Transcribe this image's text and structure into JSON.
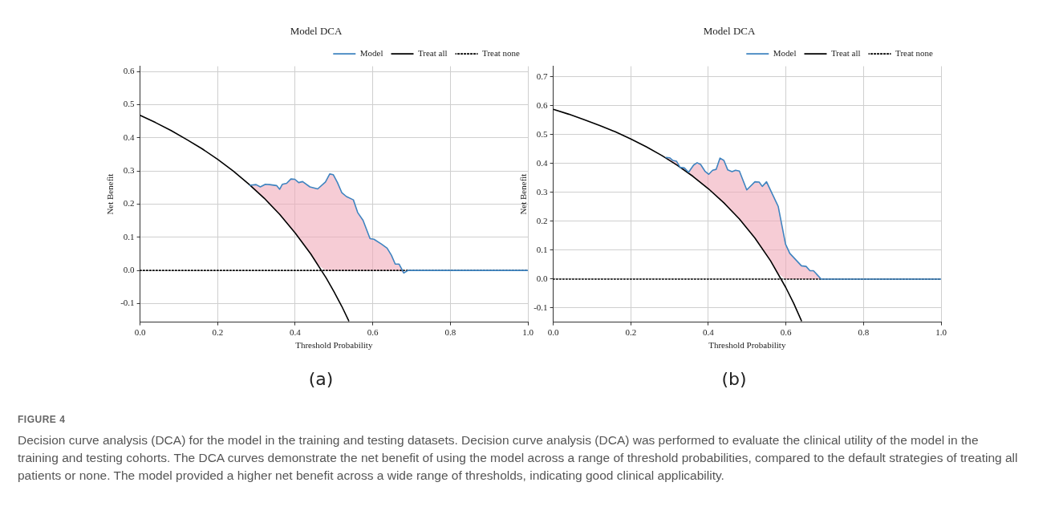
{
  "chart_data": [
    {
      "type": "line",
      "title": "Model DCA",
      "xlabel": "Threshold Probability",
      "ylabel": "Net Benefit",
      "xlim": [
        0,
        1
      ],
      "ylim": [
        -0.156,
        0.616
      ],
      "xticks": [
        {
          "value": 0,
          "label": "0.0"
        },
        {
          "value": 0.2,
          "label": "0.2"
        },
        {
          "value": 0.4,
          "label": "0.4"
        },
        {
          "value": 0.6,
          "label": "0.6"
        },
        {
          "value": 0.8,
          "label": "0.8"
        },
        {
          "value": 1,
          "label": "1.0"
        }
      ],
      "yticks": [
        {
          "value": -0.1,
          "label": "-0.1"
        },
        {
          "value": 0,
          "label": "0.0"
        },
        {
          "value": 0.1,
          "label": "0.1"
        },
        {
          "value": 0.2,
          "label": "0.2"
        },
        {
          "value": 0.3,
          "label": "0.3"
        },
        {
          "value": 0.4,
          "label": "0.4"
        },
        {
          "value": 0.5,
          "label": "0.5"
        },
        {
          "value": 0.6,
          "label": "0.6"
        }
      ],
      "grid": true,
      "legend": "top right",
      "series": [
        {
          "name": "Model",
          "color": "#3f84c0",
          "line_style": "solid",
          "x": [
            0.283,
            0.299,
            0.31,
            0.323,
            0.334,
            0.352,
            0.36,
            0.367,
            0.378,
            0.389,
            0.399,
            0.409,
            0.419,
            0.438,
            0.458,
            0.478,
            0.489,
            0.498,
            0.509,
            0.52,
            0.532,
            0.55,
            0.561,
            0.575,
            0.593,
            0.603,
            0.622,
            0.637,
            0.648,
            0.658,
            0.668,
            0.68,
            0.691,
            1
          ],
          "values": [
            0.257,
            0.259,
            0.252,
            0.26,
            0.259,
            0.256,
            0.245,
            0.26,
            0.263,
            0.276,
            0.275,
            0.265,
            0.268,
            0.252,
            0.246,
            0.267,
            0.291,
            0.289,
            0.265,
            0.235,
            0.223,
            0.213,
            0.175,
            0.151,
            0.096,
            0.094,
            0.08,
            0.067,
            0.046,
            0.019,
            0.019,
            -0.008,
            0,
            0
          ],
          "lower": [
            0.257,
            0.241,
            0.229,
            0.214,
            0.201,
            0.179,
            0.169,
            0.16,
            0.145,
            0.129,
            0.115,
            0.1,
            0.084,
            0.053,
            0.018,
            0,
            0,
            0,
            0,
            0,
            0,
            0,
            0,
            0,
            0,
            0,
            0,
            0,
            0,
            0,
            0,
            -0.008,
            0,
            0
          ],
          "upper": [
            0.257,
            0.259,
            0.252,
            0.26,
            0.259,
            0.256,
            0.245,
            0.26,
            0.263,
            0.276,
            0.275,
            0.265,
            0.268,
            0.252,
            0.246,
            0.267,
            0.291,
            0.289,
            0.265,
            0.235,
            0.223,
            0.213,
            0.175,
            0.151,
            0.096,
            0.094,
            0.08,
            0.067,
            0.046,
            0.019,
            0.019,
            -0.008,
            0,
            0
          ]
        },
        {
          "name": "Treat all",
          "color": "#000000",
          "line_style": "solid",
          "x": [
            0,
            0.04,
            0.08,
            0.12,
            0.16,
            0.2,
            0.24,
            0.28,
            0.32,
            0.36,
            0.4,
            0.44,
            0.48,
            0.5,
            0.52,
            0.538
          ],
          "values": [
            0.468,
            0.446,
            0.422,
            0.395,
            0.367,
            0.335,
            0.3,
            0.261,
            0.218,
            0.169,
            0.113,
            0.05,
            -0.023,
            -0.064,
            -0.108,
            -0.152
          ]
        },
        {
          "name": "Treat none",
          "color": "#000000",
          "line_style": "dotted",
          "x": [
            0,
            1
          ],
          "values": [
            0,
            0
          ]
        }
      ],
      "annotations": [
        "(a)",
        "FIGURE 4",
        "Decision curve analysis (DCA) for the model in the training and testing datasets. Decision curve analysis (DCA) was performed to evaluate the clinical utility of the model in the training and testing cohorts. The DCA curves demonstrate the net benefit of using the model across a range of threshold probabilities, compared to the default strategies of treating all patients or none. The model provided a higher net benefit across a wide range of thresholds, indicating good clinical applicability."
      ]
    },
    {
      "type": "line",
      "title": "Model DCA",
      "xlabel": "Threshold Probability",
      "ylabel": "Net Benefit",
      "xlim": [
        0,
        1
      ],
      "ylim": [
        -0.149,
        0.737
      ],
      "xticks": [
        {
          "value": 0,
          "label": "0.0"
        },
        {
          "value": 0.2,
          "label": "0.2"
        },
        {
          "value": 0.4,
          "label": "0.4"
        },
        {
          "value": 0.6,
          "label": "0.6"
        },
        {
          "value": 0.8,
          "label": "0.8"
        },
        {
          "value": 1,
          "label": "1.0"
        }
      ],
      "yticks": [
        {
          "value": -0.1,
          "label": "-0.1"
        },
        {
          "value": 0,
          "label": "0.0"
        },
        {
          "value": 0.1,
          "label": "0.1"
        },
        {
          "value": 0.2,
          "label": "0.2"
        },
        {
          "value": 0.3,
          "label": "0.3"
        },
        {
          "value": 0.4,
          "label": "0.4"
        },
        {
          "value": 0.5,
          "label": "0.5"
        },
        {
          "value": 0.6,
          "label": "0.6"
        },
        {
          "value": 0.7,
          "label": "0.7"
        }
      ],
      "grid": true,
      "legend": "top right",
      "series": [
        {
          "name": "Model",
          "color": "#3f84c0",
          "line_style": "solid",
          "x": [
            0.291,
            0.3,
            0.308,
            0.318,
            0.327,
            0.338,
            0.349,
            0.362,
            0.371,
            0.38,
            0.391,
            0.401,
            0.411,
            0.42,
            0.43,
            0.44,
            0.45,
            0.461,
            0.47,
            0.48,
            0.499,
            0.52,
            0.531,
            0.539,
            0.55,
            0.58,
            0.599,
            0.61,
            0.64,
            0.652,
            0.662,
            0.671,
            0.691,
            1
          ],
          "values": [
            0.421,
            0.42,
            0.411,
            0.408,
            0.387,
            0.385,
            0.37,
            0.395,
            0.403,
            0.397,
            0.374,
            0.363,
            0.377,
            0.38,
            0.419,
            0.411,
            0.378,
            0.372,
            0.377,
            0.374,
            0.309,
            0.337,
            0.336,
            0.321,
            0.337,
            0.252,
            0.121,
            0.089,
            0.046,
            0.044,
            0.029,
            0.029,
            0,
            0
          ],
          "lower": [
            0.419,
            0.411,
            0.405,
            0.396,
            0.387,
            0.378,
            0.367,
            0.354,
            0.345,
            0.336,
            0.324,
            0.312,
            0.301,
            0.29,
            0.277,
            0.264,
            0.251,
            0.236,
            0.223,
            0.208,
            0.178,
            0.142,
            0.122,
            0.106,
            0.084,
            0.019,
            0,
            0,
            0,
            0,
            0,
            0,
            0,
            0
          ],
          "upper": [
            0.421,
            0.42,
            0.411,
            0.408,
            0.387,
            0.385,
            0.37,
            0.395,
            0.403,
            0.397,
            0.374,
            0.363,
            0.377,
            0.38,
            0.419,
            0.411,
            0.378,
            0.372,
            0.377,
            0.374,
            0.309,
            0.337,
            0.336,
            0.321,
            0.337,
            0.252,
            0.121,
            0.089,
            0.046,
            0.044,
            0.029,
            0.029,
            0,
            0
          ]
        },
        {
          "name": "Treat all",
          "color": "#000000",
          "line_style": "solid",
          "x": [
            0,
            0.04,
            0.08,
            0.12,
            0.16,
            0.2,
            0.24,
            0.28,
            0.32,
            0.36,
            0.4,
            0.44,
            0.48,
            0.52,
            0.56,
            0.6,
            0.62,
            0.64
          ],
          "values": [
            0.588,
            0.571,
            0.552,
            0.532,
            0.51,
            0.485,
            0.458,
            0.428,
            0.394,
            0.356,
            0.313,
            0.264,
            0.208,
            0.142,
            0.064,
            -0.03,
            -0.084,
            -0.144
          ]
        },
        {
          "name": "Treat none",
          "color": "#000000",
          "line_style": "dotted",
          "x": [
            0,
            1
          ],
          "values": [
            0,
            0
          ]
        }
      ],
      "annotations": [
        "(b)"
      ]
    }
  ]
}
